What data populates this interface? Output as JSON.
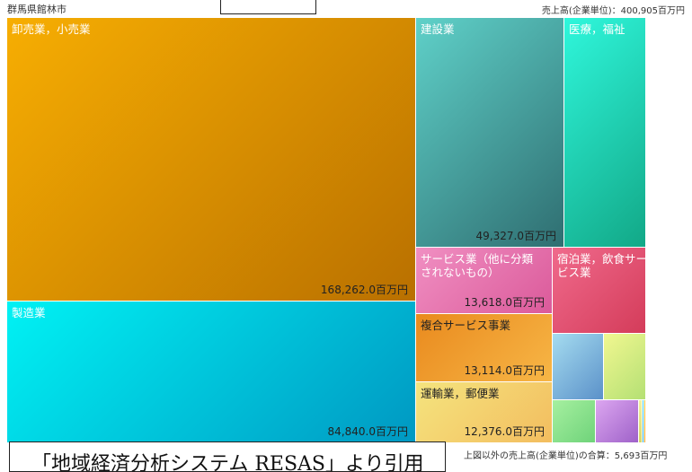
{
  "header": {
    "region": "群馬県館林市",
    "total": "売上高(企業単位)：400,905百万円"
  },
  "footer": {
    "other_total": "上図以外の売上高(企業単位)の合算：5,693百万円",
    "caption": "「地域経済分析システム RESAS」より引用"
  },
  "chart_data": {
    "type": "treemap",
    "unit": "百万円",
    "items": [
      {
        "name": "卸売業，小売業",
        "value": 168262.0,
        "label": "168,262.0百万円",
        "color_from": "#f7ae02",
        "color_to": "#b97000"
      },
      {
        "name": "製造業",
        "value": 84840.0,
        "label": "84,840.0百万円",
        "color_from": "#00f2f4",
        "color_to": "#0098c2"
      },
      {
        "name": "建設業",
        "value": 49327.0,
        "label": "49,327.0百万円",
        "color_from": "#5fd1c9",
        "color_to": "#2f6e71"
      },
      {
        "name": "医療，福祉",
        "value": null,
        "label": "",
        "color_from": "#2ff7dc",
        "color_to": "#12a887"
      },
      {
        "name": "サービス業（他に分類されないもの）",
        "value": 13618.0,
        "label": "13,618.0百万円",
        "color_from": "#f08fc2",
        "color_to": "#db5a9a"
      },
      {
        "name": "宿泊業，飲食サービス業",
        "value": null,
        "label": "",
        "color_from": "#f06a8c",
        "color_to": "#d43c5a"
      },
      {
        "name": "複合サービス事業",
        "value": 13114.0,
        "label": "13,114.0百万円",
        "color_from": "#e98a1e",
        "color_to": "#f7b646"
      },
      {
        "name": "運輸業，郵便業",
        "value": 12376.0,
        "label": "12,376.0百万円",
        "color_from": "#f4e47e",
        "color_to": "#f3bd5f"
      },
      {
        "name": "",
        "value": null,
        "label": "",
        "color_from": "#a5dcf0",
        "color_to": "#5b91c9"
      },
      {
        "name": "",
        "value": null,
        "label": "",
        "color_from": "#f1f790",
        "color_to": "#b4e074"
      },
      {
        "name": "",
        "value": null,
        "label": "",
        "color_from": "#a6f0a0",
        "color_to": "#6fd37a"
      },
      {
        "name": "",
        "value": null,
        "label": "",
        "color_from": "#dca6f0",
        "color_to": "#9f62c9"
      },
      {
        "name": "",
        "value": null,
        "label": "",
        "color_from": "#f3f3a0",
        "color_to": "#d6d666"
      },
      {
        "name": "",
        "value": null,
        "label": "",
        "color_from": "#4ad4f0",
        "color_to": "#2aa6d0"
      },
      {
        "name": "",
        "value": null,
        "label": "",
        "color_from": "#f5c842",
        "color_to": "#f0a020"
      }
    ]
  }
}
